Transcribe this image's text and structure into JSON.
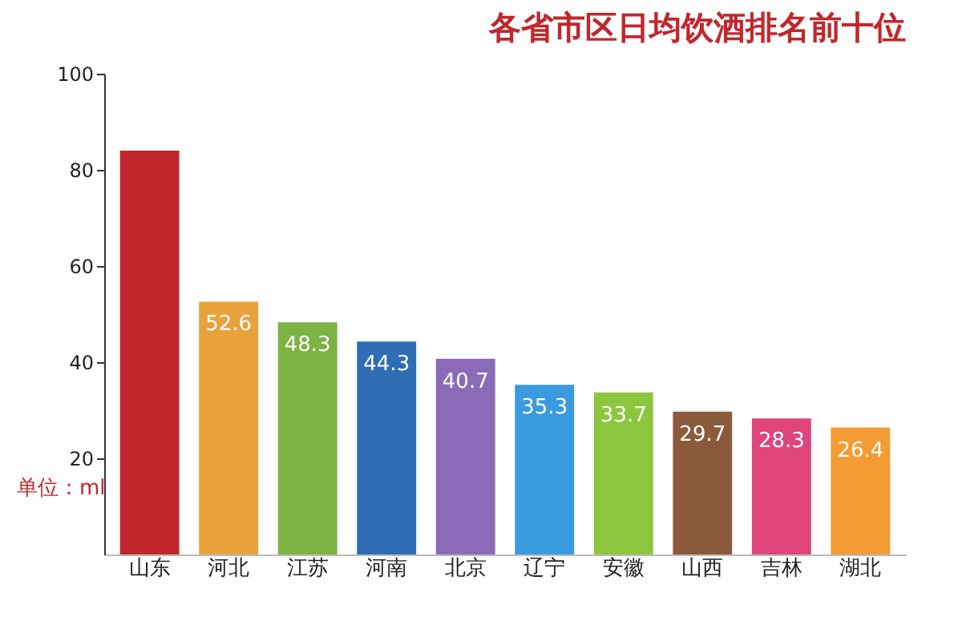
{
  "chart_data": {
    "type": "bar",
    "title": "各省市区日均饮酒排名前十位",
    "ylabel": "单位：ml",
    "categories": [
      "山东",
      "河北",
      "江苏",
      "河南",
      "北京",
      "辽宁",
      "安徽",
      "山西",
      "吉林",
      "湖北"
    ],
    "values": [
      84,
      52.6,
      48.3,
      44.3,
      40.7,
      35.3,
      33.7,
      29.7,
      28.3,
      26.4
    ],
    "value_labels": [
      null,
      "52.6",
      "48.3",
      "44.3",
      "40.7",
      "35.3",
      "33.7",
      "29.7",
      "28.3",
      "26.4"
    ],
    "colors": [
      "#c1272d",
      "#e9a23b",
      "#7cb342",
      "#2f6db5",
      "#8b6bb8",
      "#3a9ae0",
      "#8cc63f",
      "#8b5a3c",
      "#e0457b",
      "#f39c34"
    ],
    "ylim": [
      0,
      100
    ],
    "yticks": [
      20,
      40,
      60,
      80,
      100
    ],
    "grid": false
  }
}
